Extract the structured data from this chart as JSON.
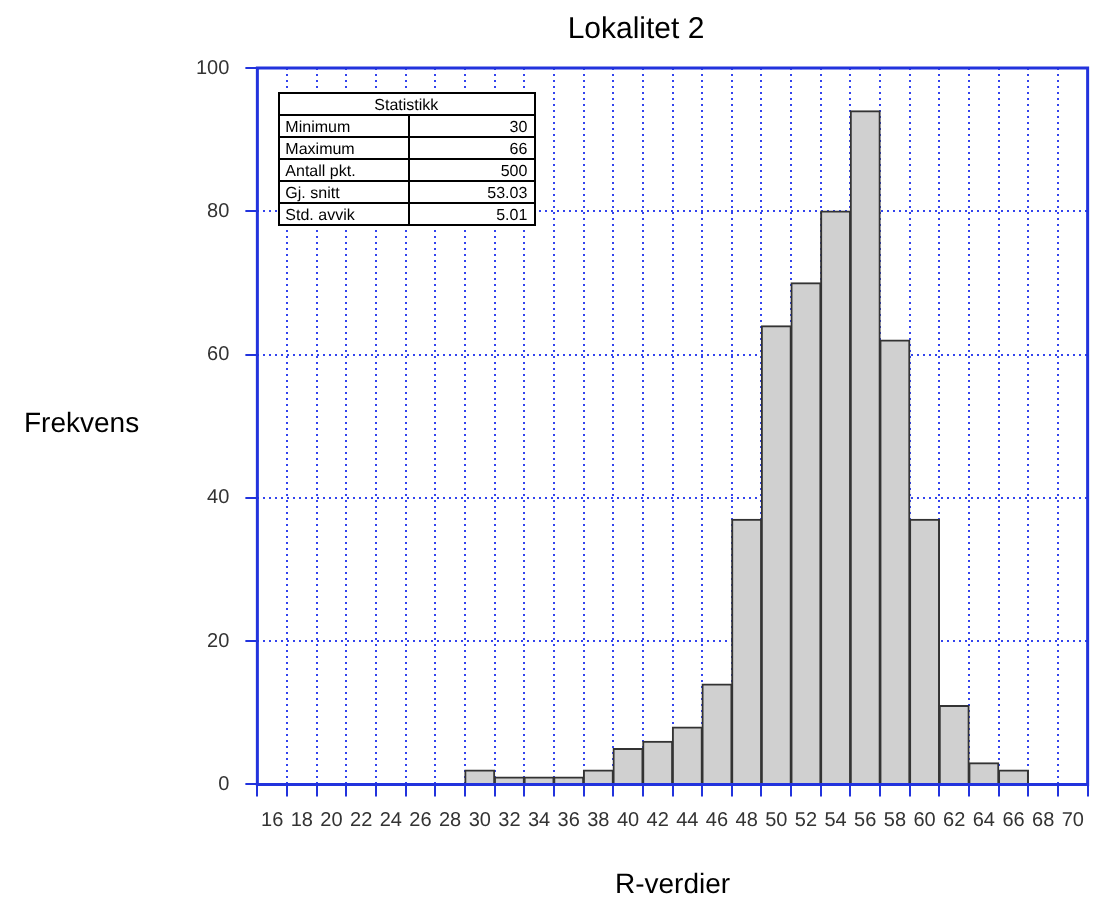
{
  "chart_data": {
    "type": "histogram",
    "title": "Lokalitet 2",
    "xlabel": "R-verdier",
    "ylabel": "Frekvens",
    "bins": [
      29,
      31,
      33,
      35,
      37,
      39,
      41,
      43,
      45,
      47,
      49,
      51,
      53,
      55,
      57,
      59,
      61,
      63,
      65,
      67
    ],
    "values": [
      2,
      1,
      1,
      1,
      2,
      5,
      6,
      8,
      14,
      37,
      64,
      70,
      80,
      94,
      62,
      37,
      11,
      3,
      2
    ],
    "color": "#d0d0d0",
    "xlim": [
      15,
      71
    ],
    "xticks": [
      16,
      18,
      20,
      22,
      24,
      26,
      28,
      30,
      32,
      34,
      36,
      38,
      40,
      42,
      44,
      46,
      48,
      50,
      52,
      54,
      56,
      58,
      60,
      62,
      64,
      66,
      68,
      70
    ],
    "ylim": [
      0,
      100
    ],
    "yticks": [
      0,
      20,
      40,
      60,
      80,
      100
    ],
    "grid": true,
    "annotations": [
      "Statistikk",
      "Minimum",
      "30",
      "Maximum",
      "66",
      "Antall pkt.",
      "500",
      "Gj. snitt",
      "53.03",
      "Std. avvik",
      "5.01"
    ]
  }
}
